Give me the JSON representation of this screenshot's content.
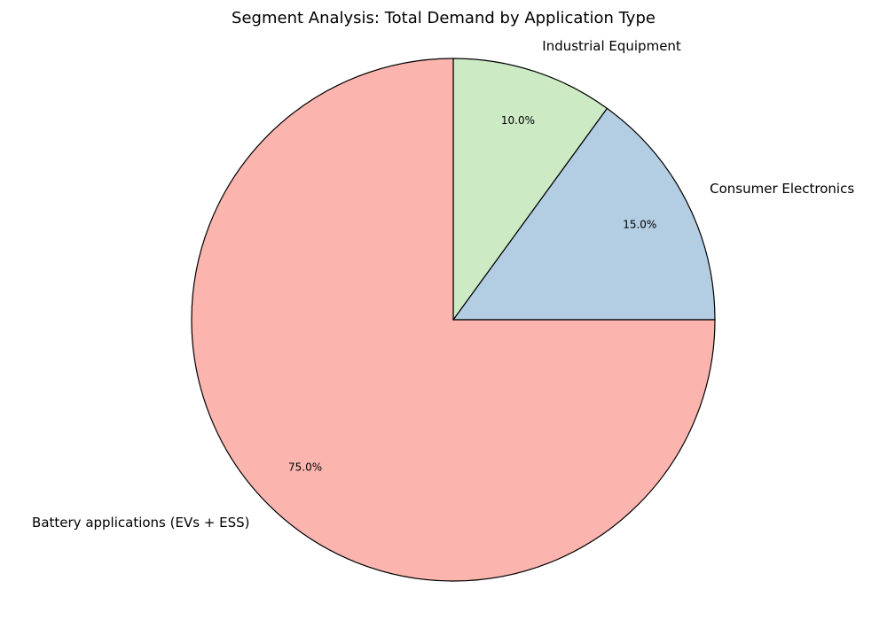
{
  "chart_data": {
    "type": "pie",
    "title": "Segment Analysis: Total Demand by Application Type",
    "categories": [
      "Consumer Electronics",
      "Industrial Equipment",
      "Battery applications (EVs + ESS)"
    ],
    "values": [
      15.0,
      10.0,
      75.0
    ],
    "percent_labels": [
      "15.0%",
      "10.0%",
      "75.0%"
    ],
    "colors": [
      "#b3cde3",
      "#ccebc5",
      "#fbb4ae"
    ],
    "start_angle_deg": 0,
    "direction": "counterclockwise",
    "edge_color": "#000000"
  }
}
